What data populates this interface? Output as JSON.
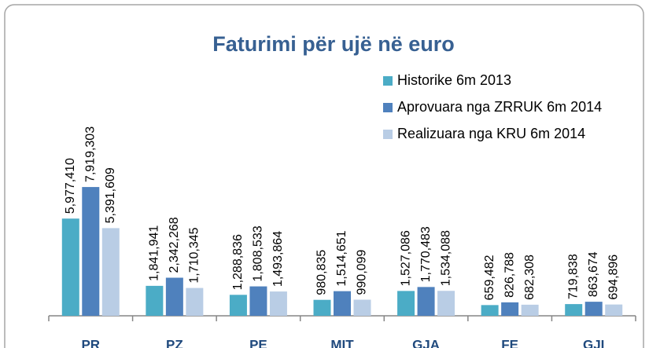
{
  "chart_data": {
    "type": "bar",
    "title": "Faturimi për ujë në euro",
    "categories": [
      "PR",
      "PZ",
      "PE",
      "MIT",
      "GJA",
      "FE",
      "GJI"
    ],
    "series": [
      {
        "name": "Historike 6m 2013",
        "color": "#4bacc6",
        "values": [
          5977410,
          1841941,
          1288836,
          980835,
          1527086,
          659482,
          719838
        ],
        "value_labels": [
          "5,977,410",
          "1,841,941",
          "1,288,836",
          "980,835",
          "1,527,086",
          "659,482",
          "719,838"
        ]
      },
      {
        "name": "Aprovuara nga ZRRUK 6m 2014",
        "color": "#4f81bd",
        "values": [
          7919303,
          2342268,
          1808533,
          1514651,
          1770483,
          826788,
          863674
        ],
        "value_labels": [
          "7,919,303",
          "2,342,268",
          "1,808,533",
          "1,514,651",
          "1,770,483",
          "826,788",
          "863,674"
        ]
      },
      {
        "name": "Realizuara nga KRU 6m 2014",
        "color": "#b9cde5",
        "values": [
          5391609,
          1710345,
          1493864,
          990099,
          1534088,
          682308,
          694896
        ],
        "value_labels": [
          "5,391,609",
          "1,710,345",
          "1,493,864",
          "990,099",
          "1,534,088",
          "682,308",
          "694,896"
        ]
      }
    ],
    "ylim": [
      0,
      10000000
    ]
  }
}
